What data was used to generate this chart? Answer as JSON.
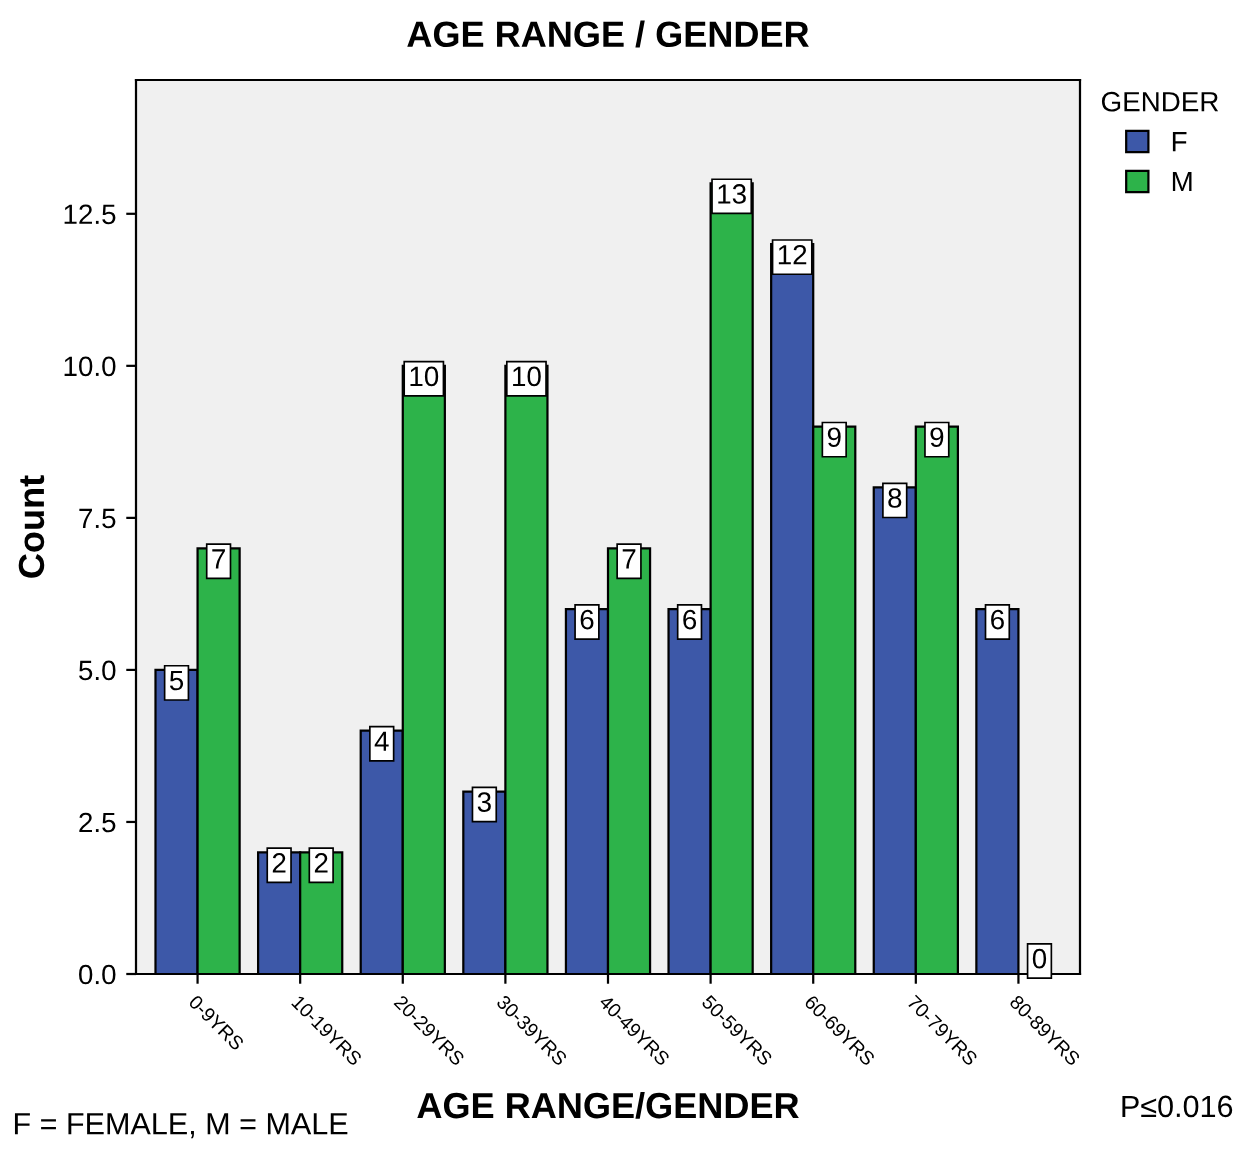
{
  "chart_data": {
    "type": "bar",
    "title": "AGE RANGE / GENDER",
    "xlabel": "AGE RANGE/GENDER",
    "ylabel": "Count",
    "legend_title": "GENDER",
    "categories": [
      "0-9YRS",
      "10-19YRS",
      "20-29YRS",
      "30-39YRS",
      "40-49YRS",
      "50-59YRS",
      "60-69YRS",
      "70-79YRS",
      "80-89YRS"
    ],
    "series": [
      {
        "name": "F",
        "color": "#3d58a8",
        "values": [
          5,
          2,
          4,
          3,
          6,
          6,
          12,
          8,
          6
        ]
      },
      {
        "name": "M",
        "color": "#2db34a",
        "values": [
          7,
          2,
          10,
          10,
          7,
          13,
          9,
          9,
          0
        ]
      }
    ],
    "ylim": [
      0,
      14.7
    ],
    "yticks": [
      {
        "value": 0,
        "label": "0.0"
      },
      {
        "value": 2.5,
        "label": "2.5"
      },
      {
        "value": 5,
        "label": "5.0"
      },
      {
        "value": 7.5,
        "label": "7.5"
      },
      {
        "value": 10,
        "label": "10.0"
      },
      {
        "value": 12.5,
        "label": "12.5"
      }
    ],
    "data_labels": true,
    "grid": false,
    "legend": "right",
    "annotations": [
      "F = FEMALE, M = MALE",
      "P≤0.016"
    ]
  }
}
